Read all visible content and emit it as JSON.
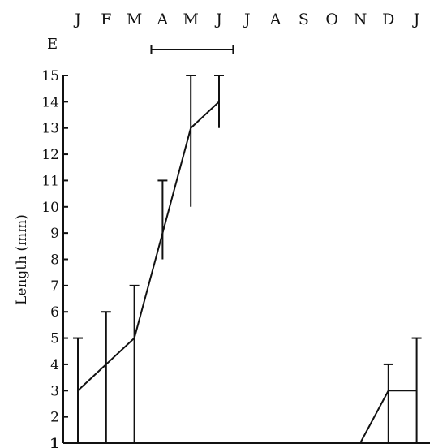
{
  "chart_data": {
    "type": "line",
    "title": "",
    "xlabel": "",
    "ylabel": "Length (mm)",
    "months": [
      "J",
      "F",
      "M",
      "A",
      "M",
      "J",
      "J",
      "A",
      "S",
      "O",
      "N",
      "D",
      "J"
    ],
    "ylim": [
      1,
      15
    ],
    "yticks": [
      "15",
      "14",
      "13",
      "12",
      "11",
      "10",
      "9",
      "8",
      "7",
      "6",
      "5",
      "4",
      "3",
      "2",
      "1"
    ],
    "bracket": {
      "label": "E",
      "start_month_index": 2.6,
      "end_month_index": 5.5
    },
    "series": [
      {
        "segments": [
          [
            {
              "x": 0,
              "y": 3,
              "low": 1,
              "high": 5
            },
            {
              "x": 1,
              "y": 4,
              "low": 1,
              "high": 6
            },
            {
              "x": 2,
              "y": 5,
              "low": 1,
              "high": 7
            },
            {
              "x": 3,
              "y": 9,
              "low": 8,
              "high": 11
            },
            {
              "x": 4,
              "y": 13,
              "low": 10,
              "high": 15
            },
            {
              "x": 5,
              "y": 14,
              "low": 13,
              "high": 15
            }
          ],
          [
            {
              "x": 10,
              "y": 1
            },
            {
              "x": 11,
              "y": 3,
              "low": 1,
              "high": 4
            },
            {
              "x": 12,
              "y": 3,
              "low": 1,
              "high": 5
            }
          ]
        ]
      }
    ]
  }
}
